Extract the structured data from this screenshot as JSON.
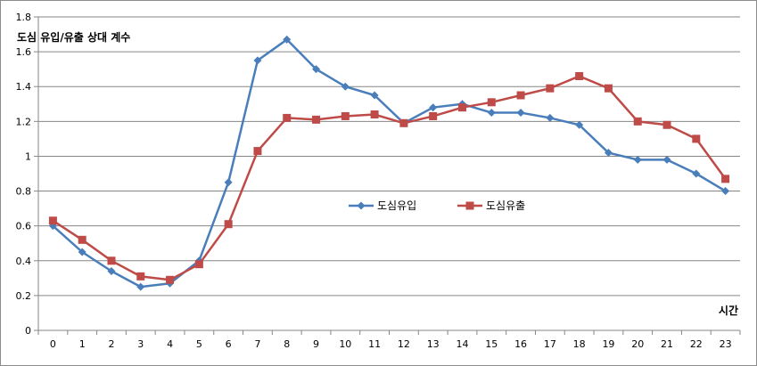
{
  "chart_data": {
    "type": "line",
    "ylabel": "도심 유입/유출 상대 계수",
    "xlabel": "시간",
    "x": [
      0,
      1,
      2,
      3,
      4,
      5,
      6,
      7,
      8,
      9,
      10,
      11,
      12,
      13,
      14,
      15,
      16,
      17,
      18,
      19,
      20,
      21,
      22,
      23
    ],
    "ylim": [
      0,
      1.8
    ],
    "yticks": [
      0,
      0.2,
      0.4,
      0.6,
      0.8,
      1,
      1.2,
      1.4,
      1.6,
      1.8
    ],
    "ytick_labels": [
      "0",
      "0.2",
      "0.4",
      "0.6",
      "0.8",
      "1",
      "1.2",
      "1.4",
      "1.6",
      "1.8"
    ],
    "grid": "horizontal",
    "legend_position": "center-right",
    "series": [
      {
        "name": "도심유입",
        "color": "#4a7ebb",
        "marker": "diamond",
        "values": [
          0.6,
          0.45,
          0.34,
          0.25,
          0.27,
          0.4,
          0.85,
          1.55,
          1.67,
          1.5,
          1.4,
          1.35,
          1.19,
          1.28,
          1.3,
          1.25,
          1.25,
          1.22,
          1.18,
          1.02,
          0.98,
          0.98,
          0.9,
          0.8
        ]
      },
      {
        "name": "도심유출",
        "color": "#be4b48",
        "marker": "square",
        "values": [
          0.63,
          0.52,
          0.4,
          0.31,
          0.29,
          0.38,
          0.61,
          1.03,
          1.22,
          1.21,
          1.23,
          1.24,
          1.19,
          1.23,
          1.28,
          1.31,
          1.35,
          1.39,
          1.46,
          1.39,
          1.2,
          1.18,
          1.1,
          0.87
        ]
      }
    ]
  }
}
